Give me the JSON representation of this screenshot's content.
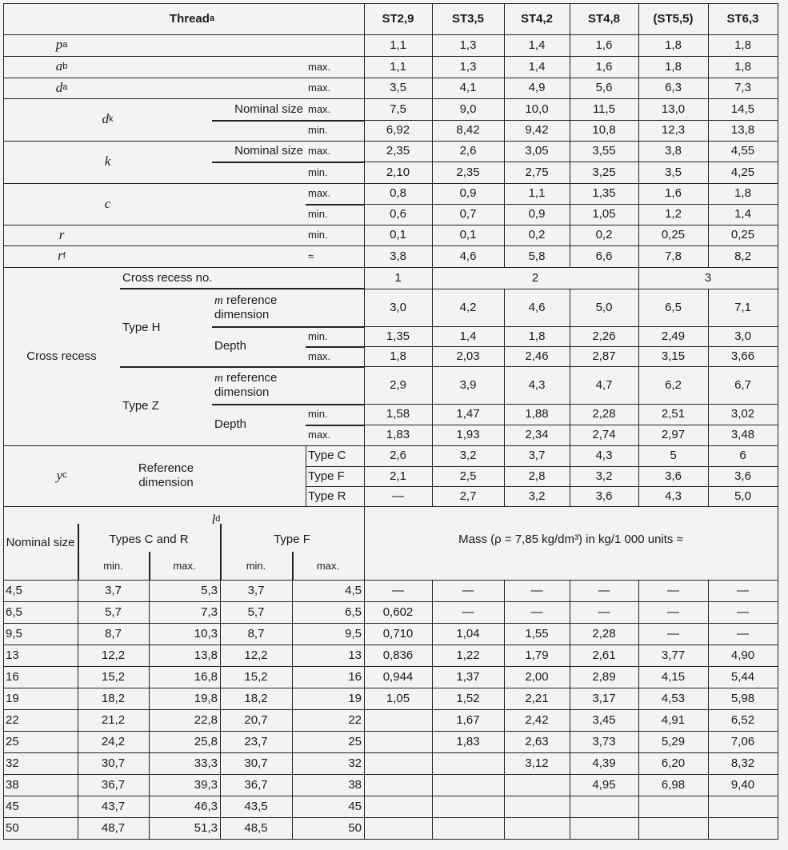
{
  "header": {
    "thread": "Thread",
    "thread_sup": "a",
    "sizes": [
      "ST2,9",
      "ST3,5",
      "ST4,2",
      "ST4,8",
      "(ST5,5)",
      "ST6,3"
    ]
  },
  "dims": {
    "p": {
      "symbol": "p",
      "sup": "a",
      "values": [
        "1,1",
        "1,3",
        "1,4",
        "1,6",
        "1,8",
        "1,8"
      ]
    },
    "a": {
      "symbol": "a",
      "sup": "b",
      "qualifier": "max.",
      "values": [
        "1,1",
        "1,3",
        "1,4",
        "1,6",
        "1,8",
        "1,8"
      ]
    },
    "da": {
      "symbol": "d",
      "sub": "a",
      "qualifier": "max.",
      "values": [
        "3,5",
        "4,1",
        "4,9",
        "5,6",
        "6,3",
        "7,3"
      ]
    },
    "dk": {
      "symbol": "d",
      "sub": "k",
      "nominal": "Nominal size",
      "max_label": "max.",
      "min_label": "min.",
      "max": [
        "7,5",
        "9,0",
        "10,0",
        "11,5",
        "13,0",
        "14,5"
      ],
      "min": [
        "6,92",
        "8,42",
        "9,42",
        "10,8",
        "12,3",
        "13,8"
      ]
    },
    "k": {
      "symbol": "k",
      "nominal": "Nominal size",
      "max_label": "max.",
      "min_label": "min.",
      "max": [
        "2,35",
        "2,6",
        "3,05",
        "3,55",
        "3,8",
        "4,55"
      ],
      "min": [
        "2,10",
        "2,35",
        "2,75",
        "3,25",
        "3,5",
        "4,25"
      ]
    },
    "c": {
      "symbol": "c",
      "max_label": "max.",
      "min_label": "min.",
      "max": [
        "0,8",
        "0,9",
        "1,1",
        "1,35",
        "1,6",
        "1,8"
      ],
      "min": [
        "0,6",
        "0,7",
        "0,9",
        "1,05",
        "1,2",
        "1,4"
      ]
    },
    "r": {
      "symbol": "r",
      "qualifier": "min.",
      "values": [
        "0,1",
        "0,1",
        "0,2",
        "0,2",
        "0,25",
        "0,25"
      ]
    },
    "rf": {
      "symbol": "r",
      "sub": "f",
      "qualifier": "≈",
      "values": [
        "3,8",
        "4,6",
        "5,8",
        "6,6",
        "7,8",
        "8,2"
      ]
    }
  },
  "cross_recess": {
    "label": "Cross recess",
    "no_label": "Cross recess no.",
    "numbers": [
      "1",
      "2",
      "3"
    ],
    "type_h": {
      "label": "Type H",
      "m_symbol": "m",
      "m_text": " reference dimension",
      "depth": "Depth",
      "min_label": "min.",
      "max_label": "max.",
      "m": [
        "3,0",
        "4,2",
        "4,6",
        "5,0",
        "6,5",
        "7,1"
      ],
      "depth_min": [
        "1,35",
        "1,4",
        "1,8",
        "2,26",
        "2,49",
        "3,0"
      ],
      "depth_max": [
        "1,8",
        "2,03",
        "2,46",
        "2,87",
        "3,15",
        "3,66"
      ]
    },
    "type_z": {
      "label": "Type Z",
      "m_symbol": "m",
      "m_text": " reference dimension",
      "depth": "Depth",
      "min_label": "min.",
      "max_label": "max.",
      "m": [
        "2,9",
        "3,9",
        "4,3",
        "4,7",
        "6,2",
        "6,7"
      ],
      "depth_min": [
        "1,58",
        "1,47",
        "1,88",
        "2,28",
        "2,51",
        "3,02"
      ],
      "depth_max": [
        "1,83",
        "1,93",
        "2,34",
        "2,74",
        "2,97",
        "3,48"
      ]
    }
  },
  "y": {
    "symbol": "y",
    "sup": "c",
    "label": "Reference dimension",
    "types": [
      {
        "label": "Type C",
        "values": [
          "2,6",
          "3,2",
          "3,7",
          "4,3",
          "5",
          "6"
        ]
      },
      {
        "label": "Type F",
        "values": [
          "2,1",
          "2,5",
          "2,8",
          "3,2",
          "3,6",
          "3,6"
        ]
      },
      {
        "label": "Type R",
        "values": [
          "—",
          "2,7",
          "3,2",
          "3,6",
          "4,3",
          "5,0"
        ]
      }
    ]
  },
  "length": {
    "symbol": "l",
    "sup": "d",
    "nominal_label": "Nominal size",
    "cr_label": "Types C and R",
    "f_label": "Type F",
    "min_label": "min.",
    "max_label": "max.",
    "mass_label": "Mass (ρ = 7,85 kg/dm³) in kg/1 000 units ≈",
    "rows": [
      {
        "nominal": "4,5",
        "cr_min": "3,7",
        "cr_max": "5,3",
        "f_min": "3,7",
        "f_max": "4,5",
        "mass": [
          "—",
          "—",
          "—",
          "—",
          "—",
          "—"
        ]
      },
      {
        "nominal": "6,5",
        "cr_min": "5,7",
        "cr_max": "7,3",
        "f_min": "5,7",
        "f_max": "6,5",
        "mass": [
          "0,602",
          "—",
          "—",
          "—",
          "—",
          "—"
        ]
      },
      {
        "nominal": "9,5",
        "cr_min": "8,7",
        "cr_max": "10,3",
        "f_min": "8,7",
        "f_max": "9,5",
        "mass": [
          "0,710",
          "1,04",
          "1,55",
          "2,28",
          "—",
          "—"
        ]
      },
      {
        "nominal": "13",
        "cr_min": "12,2",
        "cr_max": "13,8",
        "f_min": "12,2",
        "f_max": "13",
        "mass": [
          "0,836",
          "1,22",
          "1,79",
          "2,61",
          "3,77",
          "4,90"
        ]
      },
      {
        "nominal": "16",
        "cr_min": "15,2",
        "cr_max": "16,8",
        "f_min": "15,2",
        "f_max": "16",
        "mass": [
          "0,944",
          "1,37",
          "2,00",
          "2,89",
          "4,15",
          "5,44"
        ]
      },
      {
        "nominal": "19",
        "cr_min": "18,2",
        "cr_max": "19,8",
        "f_min": "18,2",
        "f_max": "19",
        "mass": [
          "1,05",
          "1,52",
          "2,21",
          "3,17",
          "4,53",
          "5,98"
        ]
      },
      {
        "nominal": "22",
        "cr_min": "21,2",
        "cr_max": "22,8",
        "f_min": "20,7",
        "f_max": "22",
        "mass": [
          null,
          "1,67",
          "2,42",
          "3,45",
          "4,91",
          "6,52"
        ]
      },
      {
        "nominal": "25",
        "cr_min": "24,2",
        "cr_max": "25,8",
        "f_min": "23,7",
        "f_max": "25",
        "mass": [
          null,
          "1,83",
          "2,63",
          "3,73",
          "5,29",
          "7,06"
        ]
      },
      {
        "nominal": "32",
        "cr_min": "30,7",
        "cr_max": "33,3",
        "f_min": "30,7",
        "f_max": "32",
        "mass": [
          null,
          null,
          "3,12",
          "4,39",
          "6,20",
          "8,32"
        ]
      },
      {
        "nominal": "38",
        "cr_min": "36,7",
        "cr_max": "39,3",
        "f_min": "36,7",
        "f_max": "38",
        "mass": [
          null,
          null,
          null,
          "4,95",
          "6,98",
          "9,40"
        ]
      },
      {
        "nominal": "45",
        "cr_min": "43,7",
        "cr_max": "46,3",
        "f_min": "43,5",
        "f_max": "45",
        "mass": [
          null,
          null,
          null,
          null,
          null,
          null
        ]
      },
      {
        "nominal": "50",
        "cr_min": "48,7",
        "cr_max": "51,3",
        "f_min": "48,5",
        "f_max": "50",
        "mass": [
          null,
          null,
          null,
          null,
          null,
          null
        ]
      }
    ]
  }
}
